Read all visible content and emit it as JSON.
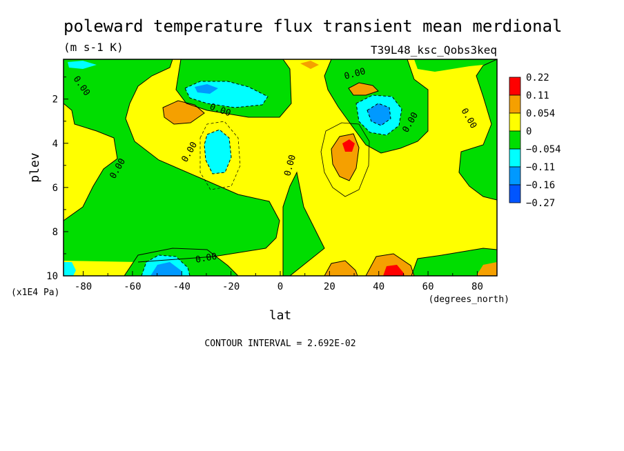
{
  "chart_data": {
    "type": "heatmap",
    "title": "poleward temperature flux transient mean merdional",
    "units": "(m s-1 K)",
    "run_label": "T39L48_ksc_Qobs3keq",
    "xlabel": "lat",
    "ylabel": "plev",
    "x_units": "(degrees_north)",
    "y_units": "(x1E4 Pa)",
    "xlim": [
      -88,
      88
    ],
    "ylim": [
      10,
      0.2
    ],
    "x_ticks": [
      -80,
      -60,
      -40,
      -20,
      0,
      20,
      40,
      60,
      80
    ],
    "x_tick_labels": [
      "-80",
      "-60",
      "-40",
      "-20",
      "0",
      "20",
      "40",
      "60",
      "80"
    ],
    "y_ticks": [
      2,
      4,
      6,
      8,
      10
    ],
    "y_tick_labels": [
      "2",
      "4",
      "6",
      "8",
      "10"
    ],
    "contour_interval_text": "CONTOUR INTERVAL = 2.692E-02",
    "contour_labels": [
      "0.00"
    ],
    "legend": {
      "levels": [
        "0.22",
        "0.11",
        "0.054",
        "0",
        "−0.054",
        "−0.11",
        "−0.16",
        "−0.27"
      ],
      "colors": [
        "#ff0000",
        "#f5a000",
        "#ffff00",
        "#00dd00",
        "#00ffff",
        "#0099ff",
        "#0055ff"
      ]
    },
    "features": [
      {
        "lat": 28,
        "plev": 4.1,
        "value": 0.14
      },
      {
        "lat": 45,
        "plev": 9.8,
        "value": 0.16
      },
      {
        "lat": -45,
        "plev": 2.5,
        "value": 0.08
      },
      {
        "lat": 33,
        "plev": 1.5,
        "value": 0.08
      },
      {
        "lat": -26,
        "plev": 4.1,
        "value": -0.12
      },
      {
        "lat": -48,
        "plev": 9.6,
        "value": -0.16
      },
      {
        "lat": 44,
        "plev": 2.5,
        "value": -0.12
      },
      {
        "lat": -31,
        "plev": 1.5,
        "value": -0.1
      },
      {
        "lat": -88,
        "plev": 9.8,
        "value": -0.1
      },
      {
        "lat": 12,
        "plev": 0.3,
        "value": 0.06
      }
    ]
  }
}
